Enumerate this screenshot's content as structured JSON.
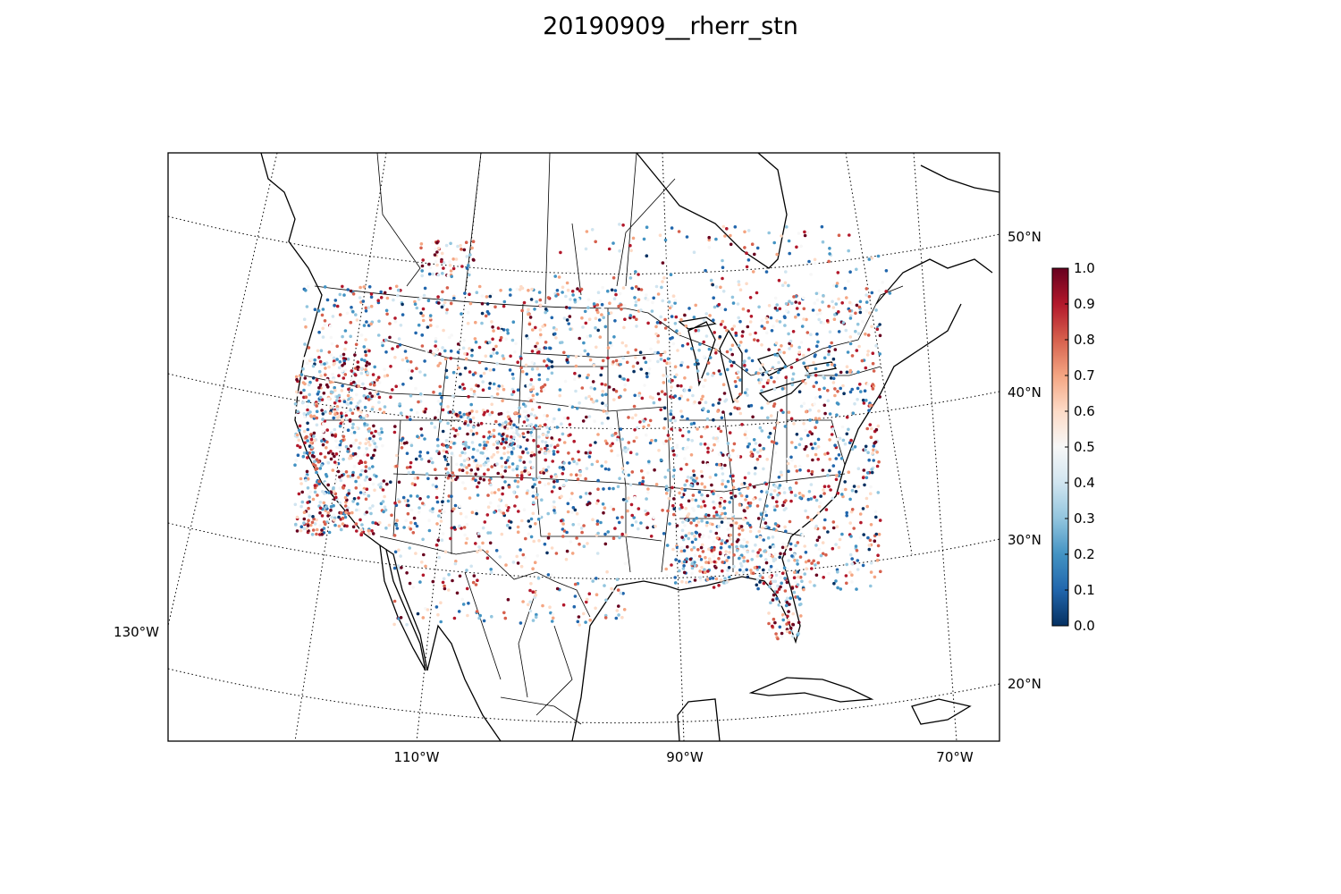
{
  "title": "20190909__rherr_stn",
  "map": {
    "projection": "Lambert conformal conic (North America)",
    "lat_labels": [
      {
        "text": "50°N",
        "lat": 50
      },
      {
        "text": "40°N",
        "lat": 40
      },
      {
        "text": "30°N",
        "lat": 30
      },
      {
        "text": "20°N",
        "lat": 20
      }
    ],
    "lon_labels": [
      {
        "text": "130°W",
        "lon": -130
      },
      {
        "text": "110°W",
        "lon": -110
      },
      {
        "text": "90°W",
        "lon": -90
      },
      {
        "text": "70°W",
        "lon": -70
      }
    ],
    "graticule": "dotted",
    "point_colormap": "RdBu_r"
  },
  "colorbar": {
    "min": 0.0,
    "max": 1.0,
    "ticks": [
      "0.0",
      "0.1",
      "0.2",
      "0.3",
      "0.4",
      "0.5",
      "0.6",
      "0.7",
      "0.8",
      "0.9",
      "1.0"
    ],
    "colors": [
      "#053061",
      "#2166ac",
      "#4393c3",
      "#92c5de",
      "#d1e5f0",
      "#f7f7f7",
      "#fddbc7",
      "#f4a582",
      "#d6604d",
      "#b2182b",
      "#67001f"
    ]
  }
}
